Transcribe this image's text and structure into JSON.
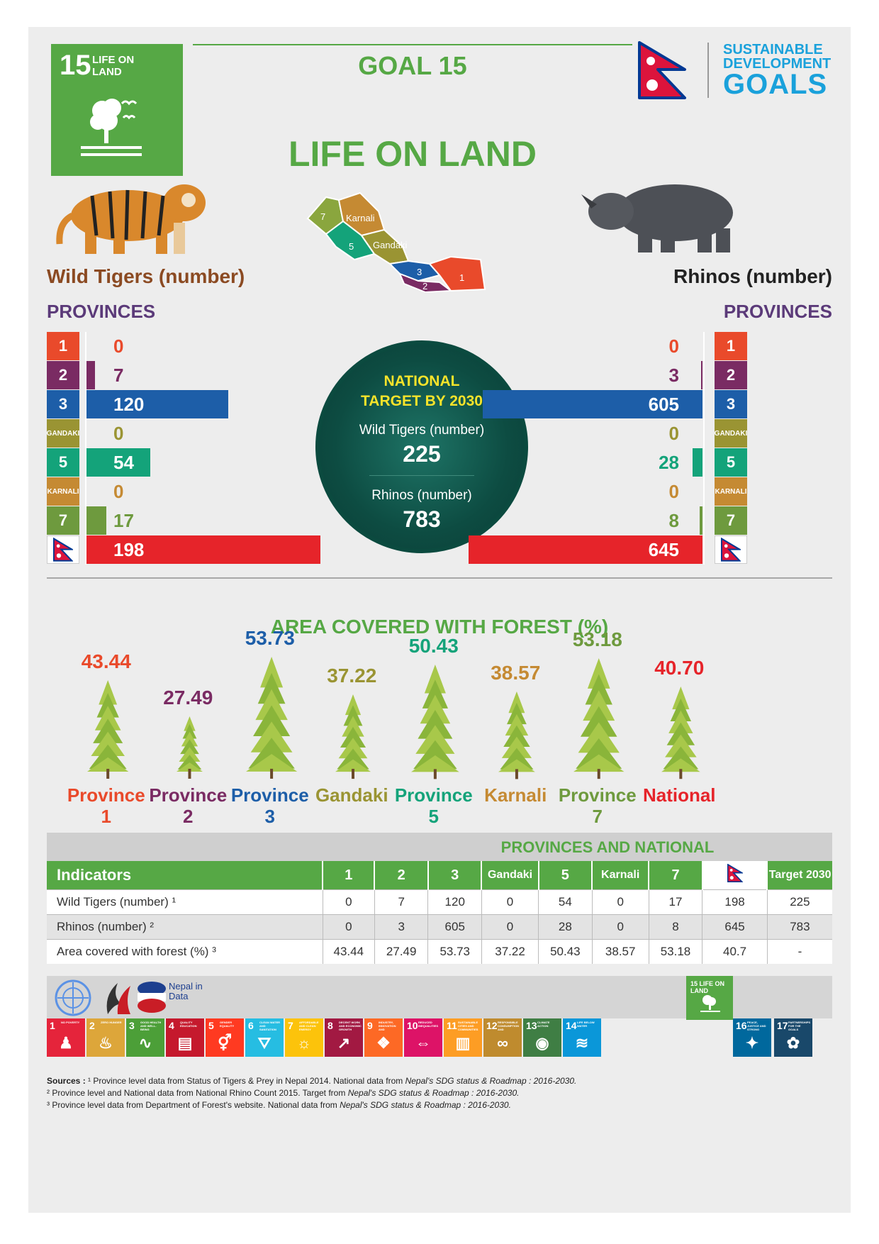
{
  "header": {
    "goal_number": "15",
    "goal_badge_label": "LIFE ON LAND",
    "goal_title": "GOAL 15",
    "main_title": "LIFE ON LAND",
    "sdg_logo_line1": "SUSTAINABLE",
    "sdg_logo_line2": "DEVELOPMENT",
    "sdg_logo_line3": "GOALS"
  },
  "map": {
    "labels": [
      "7",
      "Karnali",
      "5",
      "Gandaki",
      "3",
      "2",
      "1"
    ]
  },
  "colors": {
    "p1": "#e94a2b",
    "p2": "#7a2b63",
    "p3": "#1d5ea8",
    "gandaki": "#9a9433",
    "p5": "#14a37a",
    "karnali": "#c58a33",
    "p7": "#6e9a3e",
    "national": "#e6242a",
    "green": "#56a845"
  },
  "tigers": {
    "heading": "Wild Tigers (number)",
    "provinces_label": "PROVINCES"
  },
  "rhinos": {
    "heading": "Rhinos (number)",
    "provinces_label": "PROVINCES"
  },
  "target": {
    "title_line1": "NATIONAL",
    "title_line2": "TARGET BY 2030",
    "tiger_label": "Wild Tigers (number)",
    "tiger_value": "225",
    "rhino_label": "Rhinos (number)",
    "rhino_value": "783"
  },
  "forest": {
    "title": "AREA COVERED WITH FOREST (%)",
    "labels": [
      {
        "l1": "Province",
        "l2": "1"
      },
      {
        "l1": "Province",
        "l2": "2"
      },
      {
        "l1": "Province",
        "l2": "3"
      },
      {
        "l1": "Gandaki",
        "l2": ""
      },
      {
        "l1": "Province",
        "l2": "5"
      },
      {
        "l1": "Karnali",
        "l2": ""
      },
      {
        "l1": "Province",
        "l2": "7"
      },
      {
        "l1": "National",
        "l2": ""
      }
    ]
  },
  "table": {
    "title": "PROVINCES AND NATIONAL",
    "headers": [
      "Indicators",
      "1",
      "2",
      "3",
      "Gandaki",
      "5",
      "Karnali",
      "7",
      "",
      "Target 2030"
    ],
    "rows": [
      {
        "label": "Wild Tigers (number) ¹",
        "cells": [
          "0",
          "7",
          "120",
          "0",
          "54",
          "0",
          "17",
          "198",
          "225"
        ]
      },
      {
        "label": "Rhinos (number) ²",
        "cells": [
          "0",
          "3",
          "605",
          "0",
          "28",
          "0",
          "8",
          "645",
          "783"
        ]
      },
      {
        "label": "Area covered with forest (%) ³",
        "cells": [
          "43.44",
          "27.49",
          "53.73",
          "37.22",
          "50.43",
          "38.57",
          "53.18",
          "40.7",
          "-"
        ]
      }
    ]
  },
  "footer": {
    "nepal_in_data": "Nepal in Data",
    "life_on_land_badge": "15 LIFE ON LAND",
    "sources_prefix": "Sources :",
    "source1_a": "¹ Province level data from Status of Tigers & Prey in Nepal 2014. National data from ",
    "source1_b": "Nepal's SDG status & Roadmap : 2016-2030.",
    "source2_a": "² Province level and National data from National Rhino Count 2015. Target from ",
    "source2_b": "Nepal's SDG status & Roadmap : 2016-2030.",
    "source3_a": "³ Province level data from Department of Forest's  website. National data from ",
    "source3_b": "Nepal's SDG status & Roadmap : 2016-2030.",
    "sdg_tiles": [
      {
        "n": "1",
        "label": "NO POVERTY",
        "color": "#e5243b"
      },
      {
        "n": "2",
        "label": "ZERO HUNGER",
        "color": "#dda63a"
      },
      {
        "n": "3",
        "label": "GOOD HEALTH AND WELL-BEING",
        "color": "#4c9f38"
      },
      {
        "n": "4",
        "label": "QUALITY EDUCATION",
        "color": "#c5192d"
      },
      {
        "n": "5",
        "label": "GENDER EQUALITY",
        "color": "#ff3a21"
      },
      {
        "n": "6",
        "label": "CLEAN WATER AND SANITATION",
        "color": "#26bde2"
      },
      {
        "n": "7",
        "label": "AFFORDABLE AND CLEAN ENERGY",
        "color": "#fcc30b"
      },
      {
        "n": "8",
        "label": "DECENT WORK AND ECONOMIC GROWTH",
        "color": "#a21942"
      },
      {
        "n": "9",
        "label": "INDUSTRY, INNOVATION AND INFRASTRUCTURE",
        "color": "#fd6925"
      },
      {
        "n": "10",
        "label": "REDUCED INEQUALITIES",
        "color": "#dd1367"
      },
      {
        "n": "11",
        "label": "SUSTAINABLE CITIES AND COMMUNITIES",
        "color": "#fd9d24"
      },
      {
        "n": "12",
        "label": "RESPONSIBLE CONSUMPTION AND PRODUCTION",
        "color": "#bf8b2e"
      },
      {
        "n": "13",
        "label": "CLIMATE ACTION",
        "color": "#3f7e44"
      },
      {
        "n": "14",
        "label": "LIFE BELOW WATER",
        "color": "#0a97d9"
      },
      {
        "n": "16",
        "label": "PEACE, JUSTICE AND STRONG INSTITUTIONS",
        "color": "#00689d"
      },
      {
        "n": "17",
        "label": "PARTNERSHIPS FOR THE GOALS",
        "color": "#19486a"
      }
    ]
  },
  "chart_data": [
    {
      "type": "bar",
      "title": "Wild Tigers (number)",
      "categories": [
        "1",
        "2",
        "3",
        "GANDAKI",
        "5",
        "KARNALI",
        "7",
        "National"
      ],
      "values": [
        0,
        7,
        120,
        0,
        54,
        0,
        17,
        198
      ]
    },
    {
      "type": "bar",
      "title": "Rhinos (number)",
      "categories": [
        "1",
        "2",
        "3",
        "GANDAKI",
        "5",
        "KARNALI",
        "7",
        "National"
      ],
      "values": [
        0,
        3,
        605,
        0,
        28,
        0,
        8,
        645
      ]
    },
    {
      "type": "bar",
      "title": "AREA COVERED WITH FOREST (%)",
      "categories": [
        "Province 1",
        "Province 2",
        "Province 3",
        "Gandaki",
        "Province 5",
        "Karnali",
        "Province 7",
        "National"
      ],
      "values": [
        43.44,
        27.49,
        53.73,
        37.22,
        50.43,
        38.57,
        53.18,
        40.7
      ],
      "value_labels": [
        "43.44",
        "27.49",
        "53.73",
        "37.22",
        "50.43",
        "38.57",
        "53.18",
        "40.70"
      ]
    }
  ]
}
